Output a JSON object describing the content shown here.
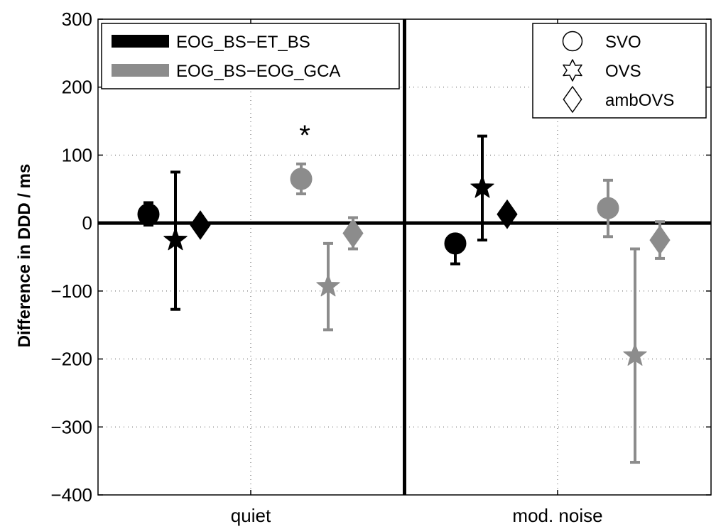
{
  "chart_data": {
    "type": "scatter",
    "title": "",
    "xlabel": "",
    "ylabel": "Difference in DDD / ms",
    "categories": [
      "quiet",
      "mod. noise"
    ],
    "ylim": [
      -400,
      300
    ],
    "yticks": [
      -400,
      -300,
      -200,
      -100,
      0,
      100,
      200,
      300
    ],
    "grid": true,
    "series": [
      {
        "name": "EOG_BS−ET_BS",
        "color": "#000000",
        "points": [
          {
            "category": "quiet",
            "marker": "SVO",
            "y": 13,
            "err_low": -3,
            "err_high": 30
          },
          {
            "category": "quiet",
            "marker": "OVS",
            "y": -25,
            "err_low": -127,
            "err_high": 75
          },
          {
            "category": "quiet",
            "marker": "ambOVS",
            "y": -3,
            "err_low": -3,
            "err_high": -3
          },
          {
            "category": "mod. noise",
            "marker": "SVO",
            "y": -30,
            "err_low": -60,
            "err_high": -30
          },
          {
            "category": "mod. noise",
            "marker": "OVS",
            "y": 52,
            "err_low": -25,
            "err_high": 128
          },
          {
            "category": "mod. noise",
            "marker": "ambOVS",
            "y": 13,
            "err_low": 13,
            "err_high": 13
          }
        ]
      },
      {
        "name": "EOG_BS−EOG_GCA",
        "color": "#8c8c8c",
        "points": [
          {
            "category": "quiet",
            "marker": "SVO",
            "y": 65,
            "err_low": 43,
            "err_high": 87
          },
          {
            "category": "quiet",
            "marker": "OVS",
            "y": -93,
            "err_low": -157,
            "err_high": -30
          },
          {
            "category": "quiet",
            "marker": "ambOVS",
            "y": -15,
            "err_low": -38,
            "err_high": 8
          },
          {
            "category": "mod. noise",
            "marker": "SVO",
            "y": 22,
            "err_low": -20,
            "err_high": 63
          },
          {
            "category": "mod. noise",
            "marker": "OVS",
            "y": -195,
            "err_low": -352,
            "err_high": -38
          },
          {
            "category": "mod. noise",
            "marker": "ambOVS",
            "y": -25,
            "err_low": -52,
            "err_high": 2
          }
        ]
      }
    ],
    "markers": [
      {
        "label": "SVO",
        "shape": "circle"
      },
      {
        "label": "OVS",
        "shape": "star"
      },
      {
        "label": "ambOVS",
        "shape": "diamond"
      }
    ],
    "annotations": [
      {
        "text": "*",
        "category": "quiet",
        "y": 138
      }
    ],
    "legend_series_position": "top-left",
    "legend_markers_position": "top-right"
  }
}
